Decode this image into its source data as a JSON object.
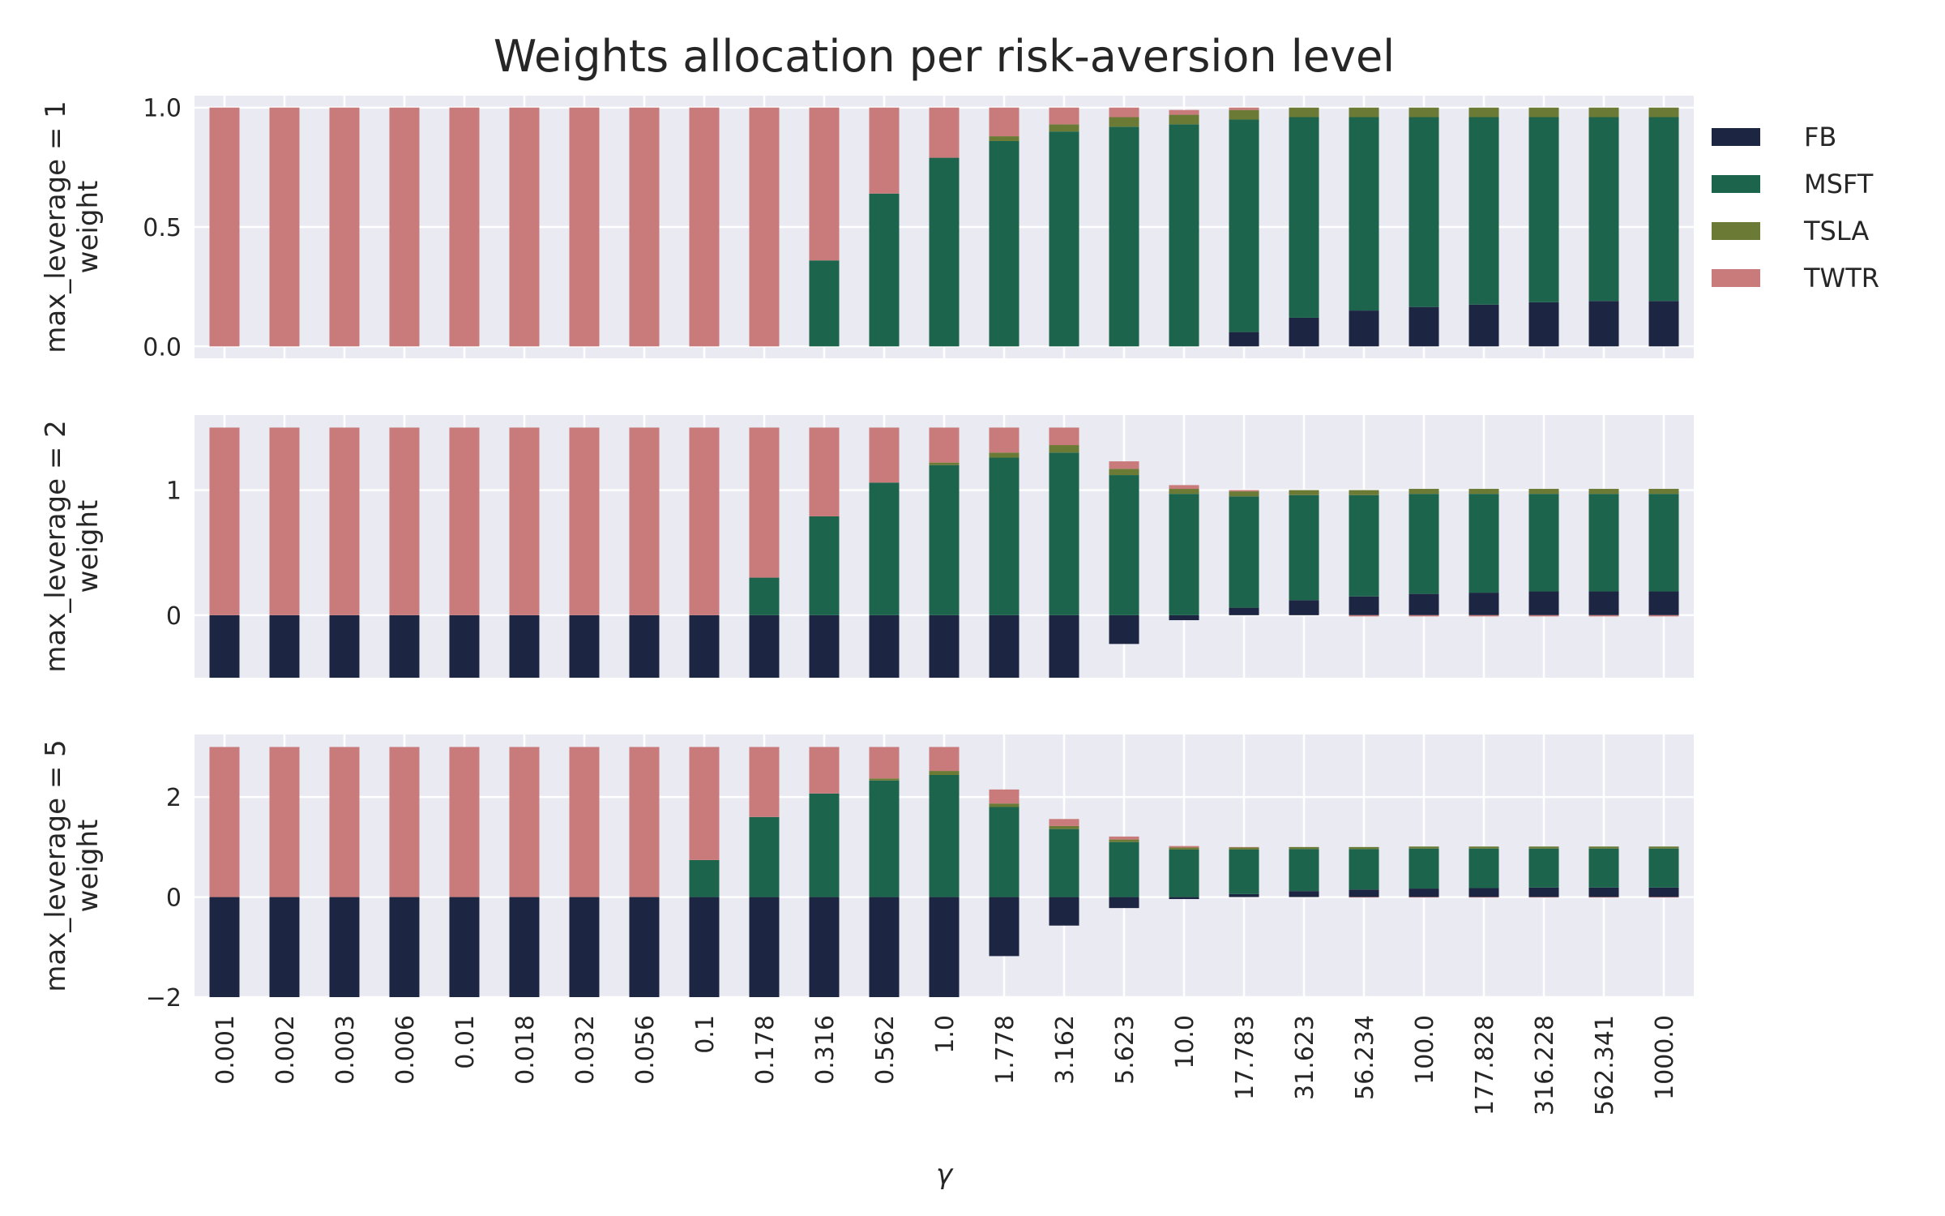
{
  "chart_data": {
    "type": "bar",
    "stacked": true,
    "title": "Weights allocation per risk-aversion level",
    "xlabel": "γ",
    "categories": [
      "0.001",
      "0.002",
      "0.003",
      "0.006",
      "0.01",
      "0.018",
      "0.032",
      "0.056",
      "0.1",
      "0.178",
      "0.316",
      "0.562",
      "1.0",
      "1.778",
      "3.162",
      "5.623",
      "10.0",
      "17.783",
      "31.623",
      "56.234",
      "100.0",
      "177.828",
      "316.228",
      "562.341",
      "1000.0"
    ],
    "legend": {
      "position": "right",
      "entries": [
        {
          "name": "FB",
          "color": "#1c2541"
        },
        {
          "name": "MSFT",
          "color": "#1c644b"
        },
        {
          "name": "TSLA",
          "color": "#6b7b35"
        },
        {
          "name": "TWTR",
          "color": "#c97b7b"
        }
      ]
    },
    "grid": true,
    "background": "#eaeaf2",
    "panels": [
      {
        "ylabel": "max_leverage = 1\nweight",
        "ylim": [
          -0.05,
          1.05
        ],
        "yticks": [
          0.0,
          0.5,
          1.0
        ],
        "ytick_labels": [
          "0.0",
          "0.5",
          "1.0"
        ],
        "series": [
          {
            "name": "FB",
            "values": [
              0,
              0,
              0,
              0,
              0,
              0,
              0,
              0,
              0,
              0,
              0,
              0,
              0,
              0,
              0,
              0,
              0,
              0.06,
              0.12,
              0.15,
              0.165,
              0.175,
              0.185,
              0.19,
              0.19
            ]
          },
          {
            "name": "MSFT",
            "values": [
              0,
              0,
              0,
              0,
              0,
              0,
              0,
              0,
              0,
              0,
              0.36,
              0.64,
              0.79,
              0.86,
              0.9,
              0.92,
              0.93,
              0.89,
              0.84,
              0.81,
              0.795,
              0.785,
              0.775,
              0.77,
              0.77
            ]
          },
          {
            "name": "TSLA",
            "values": [
              0,
              0,
              0,
              0,
              0,
              0,
              0,
              0,
              0,
              0,
              0,
              0,
              0,
              0.02,
              0.03,
              0.04,
              0.04,
              0.04,
              0.04,
              0.04,
              0.04,
              0.04,
              0.04,
              0.04,
              0.04
            ]
          },
          {
            "name": "TWTR",
            "values": [
              1,
              1,
              1,
              1,
              1,
              1,
              1,
              1,
              1,
              1,
              0.64,
              0.36,
              0.21,
              0.12,
              0.07,
              0.04,
              0.02,
              0.01,
              0,
              0,
              0,
              0,
              0,
              0,
              0
            ]
          }
        ]
      },
      {
        "ylabel": "max_leverage = 2\nweight",
        "ylim": [
          -0.5,
          1.6
        ],
        "yticks": [
          0,
          1
        ],
        "ytick_labels": [
          "0",
          "1"
        ],
        "series": [
          {
            "name": "FB",
            "values": [
              -0.5,
              -0.5,
              -0.5,
              -0.5,
              -0.5,
              -0.5,
              -0.5,
              -0.5,
              -0.5,
              -0.5,
              -0.5,
              -0.5,
              -0.5,
              -0.5,
              -0.5,
              -0.23,
              -0.04,
              0.06,
              0.12,
              0.15,
              0.17,
              0.18,
              0.19,
              0.19,
              0.19
            ]
          },
          {
            "name": "MSFT",
            "values": [
              0,
              0,
              0,
              0,
              0,
              0,
              0,
              0,
              0,
              0.3,
              0.79,
              1.06,
              1.2,
              1.26,
              1.3,
              1.12,
              0.97,
              0.89,
              0.84,
              0.81,
              0.8,
              0.79,
              0.78,
              0.78,
              0.78
            ]
          },
          {
            "name": "TSLA",
            "values": [
              0,
              0,
              0,
              0,
              0,
              0,
              0,
              0,
              0,
              0,
              0,
              0,
              0.02,
              0.04,
              0.06,
              0.05,
              0.04,
              0.04,
              0.04,
              0.04,
              0.04,
              0.04,
              0.04,
              0.04,
              0.04
            ]
          },
          {
            "name": "TWTR",
            "values": [
              1.5,
              1.5,
              1.5,
              1.5,
              1.5,
              1.5,
              1.5,
              1.5,
              1.5,
              1.2,
              0.71,
              0.44,
              0.28,
              0.2,
              0.14,
              0.06,
              0.03,
              0.01,
              0,
              -0.01,
              -0.01,
              -0.01,
              -0.01,
              -0.01,
              -0.01
            ]
          }
        ]
      },
      {
        "ylabel": "max_leverage = 5\nweight",
        "ylim": [
          -2,
          3.25
        ],
        "yticks": [
          -2,
          0,
          2
        ],
        "ytick_labels": [
          "−2",
          "0",
          "2"
        ],
        "series": [
          {
            "name": "FB",
            "values": [
              -2,
              -2,
              -2,
              -2,
              -2,
              -2,
              -2,
              -2,
              -2,
              -2,
              -2,
              -2,
              -2,
              -1.18,
              -0.57,
              -0.22,
              -0.04,
              0.06,
              0.12,
              0.15,
              0.17,
              0.18,
              0.19,
              0.19,
              0.19
            ]
          },
          {
            "name": "MSFT",
            "values": [
              0,
              0,
              0,
              0,
              0,
              0,
              0,
              0,
              0.74,
              1.6,
              2.07,
              2.33,
              2.44,
              1.8,
              1.36,
              1.1,
              0.95,
              0.89,
              0.84,
              0.81,
              0.8,
              0.79,
              0.78,
              0.78,
              0.78
            ]
          },
          {
            "name": "TSLA",
            "values": [
              0,
              0,
              0,
              0,
              0,
              0,
              0,
              0,
              0,
              0,
              0,
              0.04,
              0.08,
              0.07,
              0.06,
              0.05,
              0.04,
              0.04,
              0.04,
              0.04,
              0.04,
              0.04,
              0.04,
              0.04,
              0.04
            ]
          },
          {
            "name": "TWTR",
            "values": [
              3,
              3,
              3,
              3,
              3,
              3,
              3,
              3,
              2.26,
              1.4,
              0.93,
              0.63,
              0.48,
              0.28,
              0.14,
              0.06,
              0.03,
              0.01,
              0,
              -0.01,
              -0.01,
              -0.01,
              -0.01,
              -0.01,
              -0.01
            ]
          }
        ]
      }
    ]
  }
}
